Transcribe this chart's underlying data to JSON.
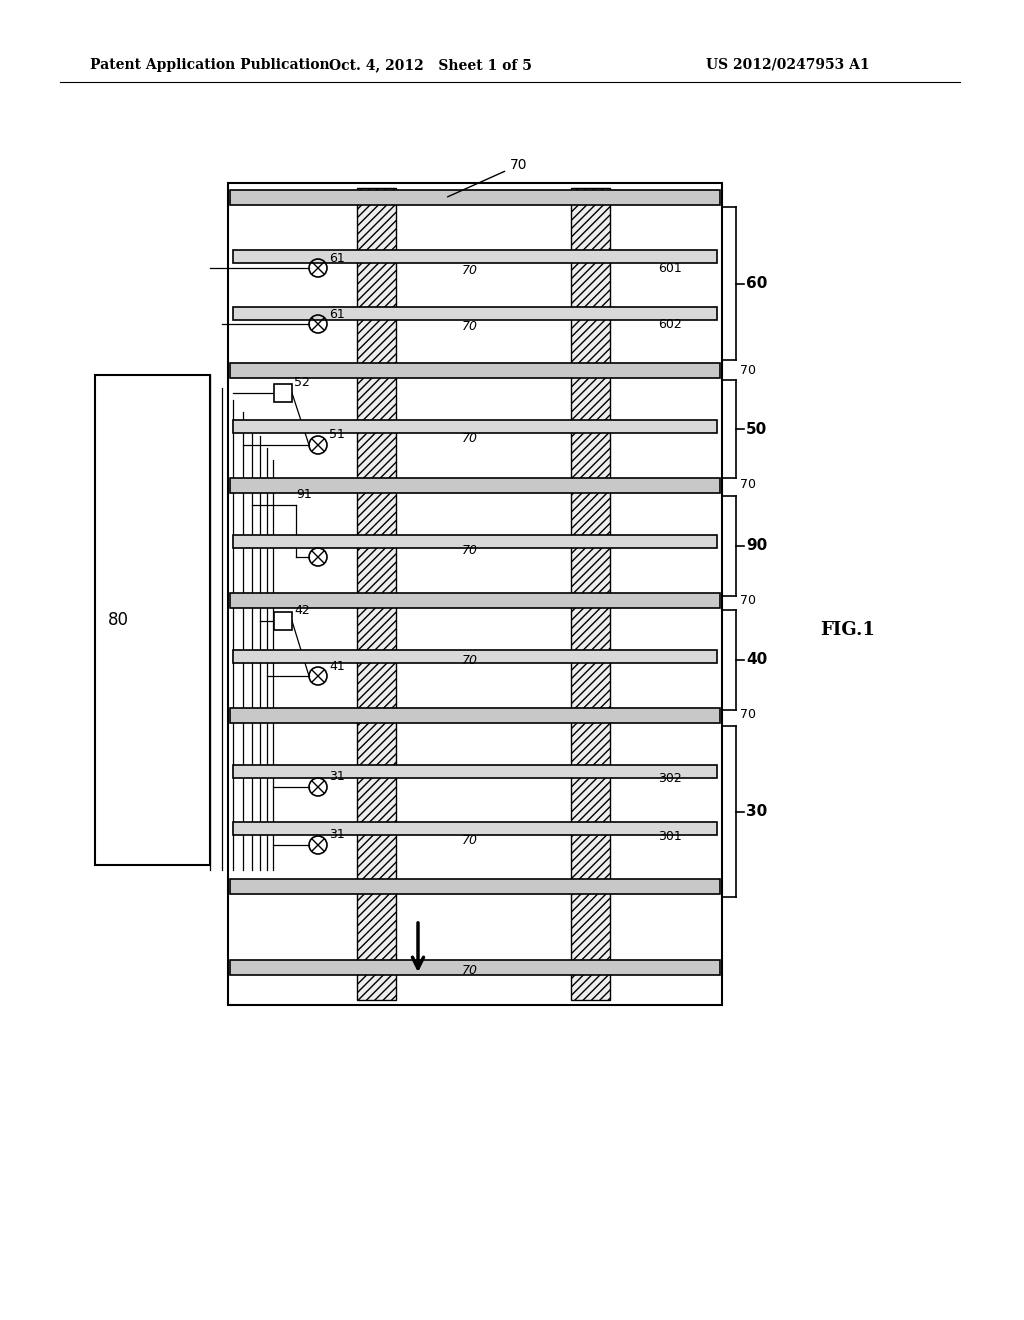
{
  "bg_color": "#ffffff",
  "header_left": "Patent Application Publication",
  "header_mid": "Oct. 4, 2012   Sheet 1 of 5",
  "header_right": "US 2012/0247953 A1",
  "fig_label": "FIG.1",
  "box80_label": "80",
  "bar_gray": "#c8c8c8",
  "bar_gray2": "#d8d8d8",
  "hatch_color": "#888888"
}
